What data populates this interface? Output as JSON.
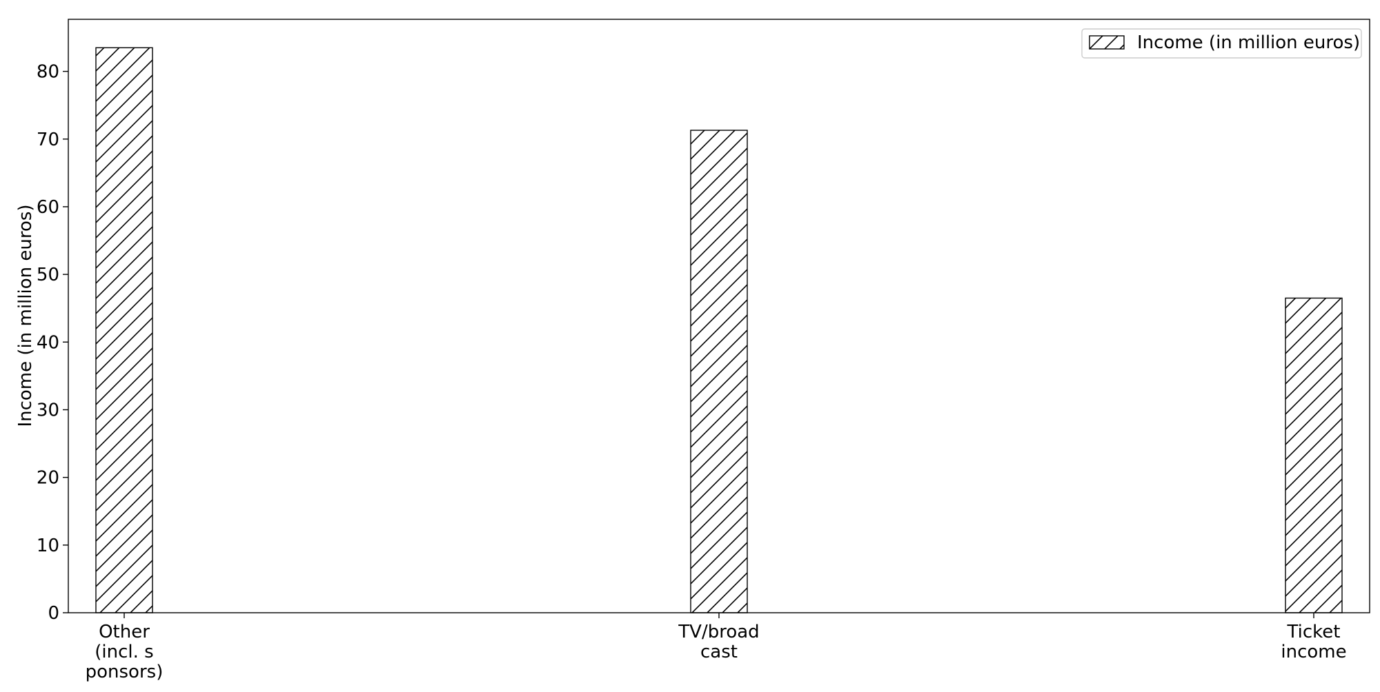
{
  "chart_data": {
    "type": "bar",
    "categories": [
      [
        "Other",
        "(incl. s",
        "ponsors)"
      ],
      [
        "TV/broad",
        "cast"
      ],
      [
        "Ticket",
        "income"
      ]
    ],
    "series": [
      {
        "name": "Income (in million euros)",
        "values": [
          83.5,
          71.3,
          46.5
        ]
      }
    ],
    "title": "",
    "xlabel": "",
    "ylabel": "Income (in million euros)",
    "ylim": [
      0,
      87.7
    ],
    "yticks": [
      0,
      10,
      20,
      30,
      40,
      50,
      60,
      70,
      80
    ],
    "grid": false,
    "legend": "top-right",
    "bar_fill": "#ffffff",
    "bar_stroke": "#000000",
    "hatch": "diagonal"
  }
}
